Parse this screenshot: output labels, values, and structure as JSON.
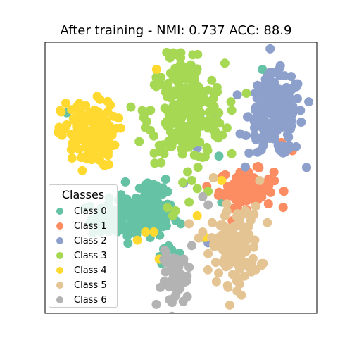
{
  "chart_data": {
    "type": "scatter",
    "title": "After training - NMI: 0.737 ACC: 88.9",
    "xlabel": "",
    "ylabel": "",
    "xlim": [
      0,
      100
    ],
    "ylim": [
      0,
      100
    ],
    "grid": false,
    "axis_ticks": false,
    "legend": {
      "title": "Classes",
      "placement": "lower-left"
    },
    "series": [
      {
        "name": "Class 0",
        "color": "#66c2a5",
        "clusters": [
          {
            "center": [
              33,
              35
            ],
            "spread": [
              8,
              3.5
            ],
            "count": 140
          },
          {
            "center": [
              40,
              45
            ],
            "spread": [
              3,
              3
            ],
            "count": 40
          },
          {
            "center": [
              45,
              23
            ],
            "spread": [
              2,
              2
            ],
            "count": 10
          }
        ],
        "outliers": [
          [
            8,
            74
          ],
          [
            45,
            80
          ],
          [
            57,
            73
          ],
          [
            65,
            41
          ],
          [
            88,
            60
          ],
          [
            80,
            90
          ],
          [
            64,
            58
          ]
        ]
      },
      {
        "name": "Class 1",
        "color": "#fc8d62",
        "clusters": [
          {
            "center": [
              74,
              46
            ],
            "spread": [
              5,
              3.5
            ],
            "count": 100
          }
        ],
        "outliers": [
          [
            61,
            72
          ],
          [
            81,
            83
          ],
          [
            87,
            63
          ],
          [
            91,
            60
          ],
          [
            84,
            85
          ]
        ]
      },
      {
        "name": "Class 2",
        "color": "#8da0cb",
        "clusters": [
          {
            "center": [
              85,
              73
            ],
            "spread": [
              5,
              7.5
            ],
            "count": 180
          }
        ],
        "outliers": [
          [
            63,
            72
          ],
          [
            56,
            61
          ],
          [
            51,
            48
          ],
          [
            60,
            26
          ],
          [
            68,
            27
          ]
        ]
      },
      {
        "name": "Class 3",
        "color": "#a6d854",
        "clusters": [
          {
            "center": [
              52,
              74
            ],
            "spread": [
              7,
              9
            ],
            "count": 240
          },
          {
            "center": [
              50,
              93
            ],
            "spread": [
              2,
              3
            ],
            "count": 20
          }
        ],
        "outliers": [
          [
            54,
            49
          ],
          [
            56,
            46
          ],
          [
            60,
            45
          ],
          [
            53,
            41
          ],
          [
            45,
            39
          ],
          [
            47,
            36
          ],
          [
            58,
            28
          ]
        ]
      },
      {
        "name": "Class 4",
        "color": "#ffd92f",
        "clusters": [
          {
            "center": [
              16,
              66
            ],
            "spread": [
              5,
              6
            ],
            "count": 150
          }
        ],
        "outliers": [
          [
            41,
            90
          ],
          [
            62,
            50
          ],
          [
            34,
            27
          ],
          [
            37,
            30
          ],
          [
            40,
            30
          ],
          [
            42,
            20
          ],
          [
            59,
            28
          ],
          [
            65,
            49
          ],
          [
            56,
            36
          ]
        ]
      },
      {
        "name": "Class 5",
        "color": "#e5c494",
        "clusters": [
          {
            "center": [
              70,
              25
            ],
            "spread": [
              4.5,
              7
            ],
            "count": 130
          }
        ],
        "outliers": [
          [
            53,
            33
          ],
          [
            58,
            30
          ],
          [
            60,
            22
          ],
          [
            62,
            50
          ],
          [
            79,
            49
          ]
        ]
      },
      {
        "name": "Class 6",
        "color": "#b3b3b3",
        "clusters": [
          {
            "center": [
              48,
              12
            ],
            "spread": [
              2.5,
              5
            ],
            "count": 60
          }
        ],
        "outliers": [
          [
            51,
            20
          ],
          [
            53,
            17
          ],
          [
            54,
            25
          ],
          [
            58,
            43
          ],
          [
            60,
            40
          ]
        ]
      }
    ]
  }
}
